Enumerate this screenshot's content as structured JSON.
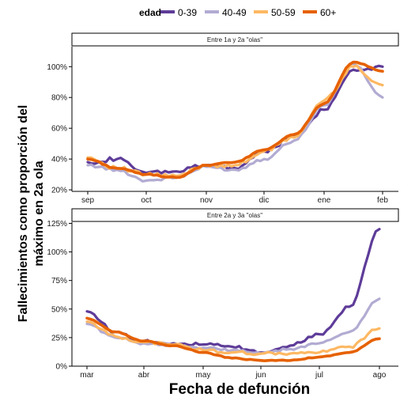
{
  "legend": {
    "title": "edad",
    "items": [
      {
        "label": "0-39",
        "color": "#5e3c99"
      },
      {
        "label": "40-49",
        "color": "#b2abd2"
      },
      {
        "label": "50-59",
        "color": "#fdb863"
      },
      {
        "label": "60+",
        "color": "#e66101"
      }
    ]
  },
  "axes": {
    "ylabel_line1": "Fallecimientos como proporción del",
    "ylabel_line2": "máximo en 2a ola",
    "xlabel": "Fecha de defunción"
  },
  "chart_data": [
    {
      "type": "line",
      "title": "Entre 1a y 2a \"olas\"",
      "xlabel": "Fecha de defunción",
      "ylabel": "Fallecimientos como proporción del máximo en 2a ola",
      "x_ticks": [
        "sep",
        "oct",
        "nov",
        "dic",
        "ene",
        "feb"
      ],
      "y_ticks": [
        "20%",
        "40%",
        "60%",
        "80%",
        "100%"
      ],
      "ylim": [
        19,
        113
      ],
      "x": [
        "sep",
        "sep 15",
        "oct",
        "oct 15",
        "nov",
        "nov 15",
        "dic",
        "dic 15",
        "ene",
        "ene 15",
        "feb"
      ],
      "series": [
        {
          "name": "0-39",
          "values": [
            38,
            40,
            31,
            32,
            36,
            34,
            45,
            55,
            72,
            98,
            100
          ]
        },
        {
          "name": "40-49",
          "values": [
            36,
            33,
            26,
            28,
            35,
            33,
            40,
            52,
            75,
            102,
            80
          ]
        },
        {
          "name": "50-59",
          "values": [
            41,
            34,
            30,
            29,
            36,
            36,
            45,
            54,
            78,
            100,
            88
          ]
        },
        {
          "name": "60+",
          "values": [
            40,
            34,
            30,
            28,
            36,
            38,
            46,
            56,
            76,
            103,
            97
          ]
        }
      ]
    },
    {
      "type": "line",
      "title": "Entre 2a y 3a \"olas\"",
      "xlabel": "Fecha de defunción",
      "ylabel": "Fallecimientos como proporción del máximo en 2a ola",
      "x_ticks": [
        "mar",
        "abr",
        "may",
        "jun",
        "jul",
        "ago"
      ],
      "y_ticks": [
        "0%",
        "25%",
        "50%",
        "75%",
        "100%",
        "125%"
      ],
      "ylim": [
        0,
        126
      ],
      "x": [
        "mar",
        "mar 15",
        "abr",
        "abr 15",
        "may",
        "may 15",
        "jun",
        "jun 15",
        "jul",
        "jul 15",
        "ago"
      ],
      "series": [
        {
          "name": "0-39",
          "values": [
            48,
            30,
            22,
            20,
            19,
            17,
            12,
            18,
            28,
            52,
            120
          ]
        },
        {
          "name": "40-49",
          "values": [
            37,
            25,
            20,
            18,
            16,
            14,
            11,
            15,
            20,
            30,
            59
          ]
        },
        {
          "name": "50-59",
          "values": [
            39,
            26,
            21,
            19,
            14,
            12,
            11,
            11,
            12,
            17,
            33
          ]
        },
        {
          "name": "60+",
          "values": [
            42,
            30,
            22,
            18,
            12,
            7,
            5,
            5,
            8,
            12,
            24
          ]
        }
      ]
    }
  ]
}
